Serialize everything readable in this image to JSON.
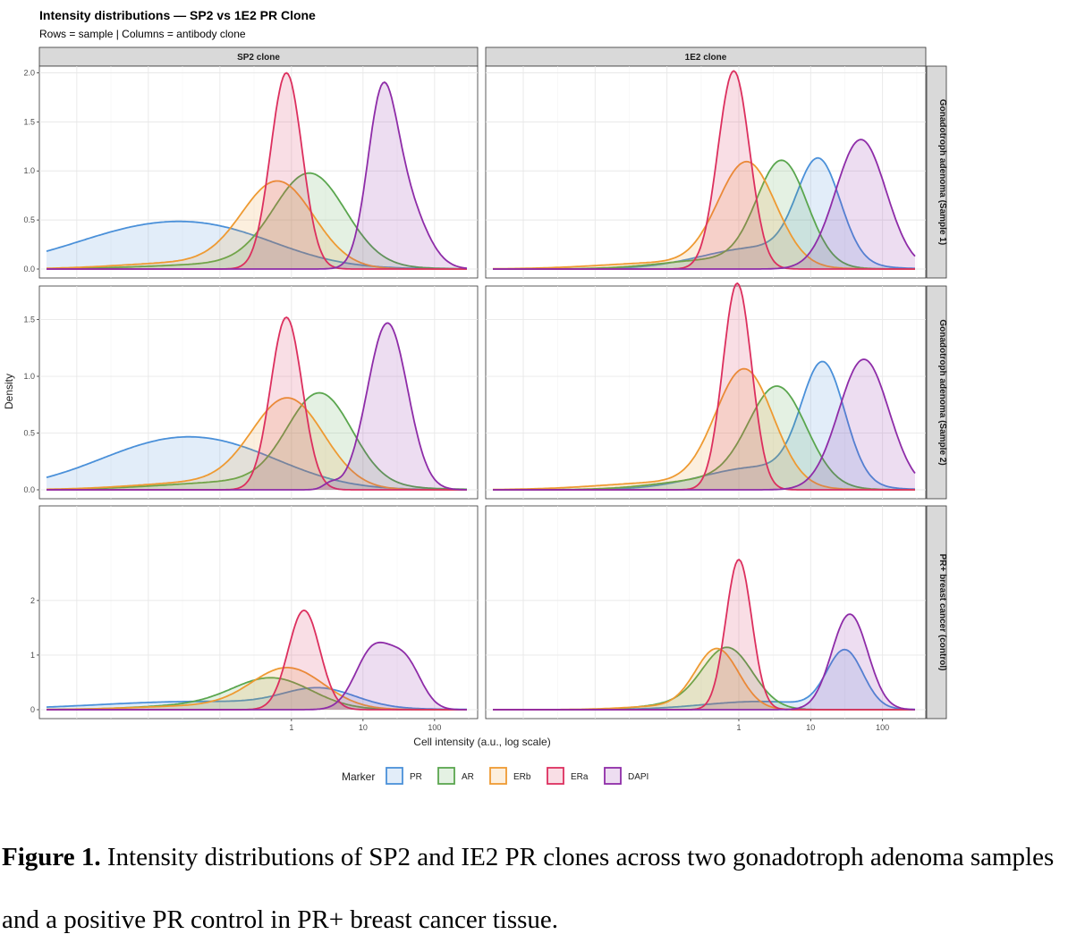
{
  "figure": {
    "title": "Intensity distributions — SP2 vs 1E2 PR Clone",
    "subtitle": "Rows = sample | Columns = antibody clone",
    "caption_bold": "Figure 1.",
    "caption_text": " Intensity distributions of SP2 and IE2 PR clones across two gonadotroph adenoma samples and a positive PR control in PR+ breast cancer tissue."
  },
  "chart_data": {
    "type": "area",
    "title": "Intensity distributions — SP2 vs 1E2 PR Clone",
    "subtitle": "Rows = sample | Columns = antibody clone",
    "xlabel": "Cell intensity (a.u., log scale)",
    "ylabel": "Density",
    "x_scale": "log10",
    "x_ticks": [
      1,
      10,
      100
    ],
    "x_range": [
      0.0003,
      400
    ],
    "columns": [
      "SP2 clone",
      "1E2 clone"
    ],
    "rows": [
      "Gonadotroph adenoma (Sample 1)",
      "Gonadotroph adenoma (Sample 2)",
      "PR+ breast cancer (control)"
    ],
    "row_ylim": [
      [
        0,
        2.05
      ],
      [
        0,
        1.78
      ],
      [
        0,
        3.7
      ]
    ],
    "row_yticks": [
      [
        "0.0",
        "0.5",
        "1.0",
        "1.5",
        "2.0"
      ],
      [
        "0.0",
        "0.5",
        "1.0",
        "1.5"
      ],
      [
        "0",
        "1",
        "2"
      ]
    ],
    "legend": {
      "title": "Marker",
      "placement": "bottom",
      "items": [
        "PR",
        "AR",
        "ERb",
        "ERa",
        "DAPI"
      ]
    },
    "colors": {
      "PR": "#4a90d9",
      "AR": "#5aa64e",
      "ERb": "#ee9a32",
      "ERa": "#dc2f5e",
      "DAPI": "#8e2ca8"
    },
    "grid": true,
    "panels": [
      {
        "row": 0,
        "col": 0,
        "series": [
          {
            "name": "PR",
            "components": [
              [
                0.015,
                1.2,
                0.44
              ],
              [
                0.2,
                0.8,
                0.1
              ]
            ]
          },
          {
            "name": "AR",
            "components": [
              [
                1.8,
                0.5,
                0.93
              ],
              [
                0.3,
                1.2,
                0.06
              ]
            ]
          },
          {
            "name": "ERb",
            "components": [
              [
                0.65,
                0.5,
                0.86
              ],
              [
                0.05,
                1.0,
                0.07
              ]
            ]
          },
          {
            "name": "ERa",
            "components": [
              [
                0.85,
                0.22,
                2.0
              ]
            ]
          },
          {
            "name": "DAPI",
            "components": [
              [
                18,
                0.2,
                1.4
              ],
              [
                35,
                0.3,
                0.75
              ]
            ]
          }
        ]
      },
      {
        "row": 0,
        "col": 1,
        "series": [
          {
            "name": "PR",
            "components": [
              [
                13,
                0.3,
                1.0
              ],
              [
                2,
                0.8,
                0.22
              ]
            ]
          },
          {
            "name": "AR",
            "components": [
              [
                4.0,
                0.35,
                1.05
              ],
              [
                0.6,
                0.8,
                0.1
              ]
            ]
          },
          {
            "name": "ERb",
            "components": [
              [
                1.3,
                0.4,
                1.05
              ],
              [
                0.15,
                1.0,
                0.07
              ]
            ]
          },
          {
            "name": "ERa",
            "components": [
              [
                0.85,
                0.22,
                2.02
              ]
            ]
          },
          {
            "name": "DAPI",
            "components": [
              [
                50,
                0.35,
                1.32
              ]
            ]
          }
        ]
      },
      {
        "row": 1,
        "col": 0,
        "series": [
          {
            "name": "PR",
            "components": [
              [
                0.025,
                1.1,
                0.43
              ],
              [
                0.3,
                0.8,
                0.08
              ]
            ]
          },
          {
            "name": "AR",
            "components": [
              [
                2.5,
                0.45,
                0.79
              ],
              [
                0.4,
                1.2,
                0.08
              ]
            ]
          },
          {
            "name": "ERb",
            "components": [
              [
                0.9,
                0.5,
                0.77
              ],
              [
                0.08,
                1.0,
                0.07
              ]
            ]
          },
          {
            "name": "ERa",
            "components": [
              [
                0.85,
                0.22,
                1.52
              ]
            ]
          },
          {
            "name": "DAPI",
            "components": [
              [
                22,
                0.28,
                1.47
              ],
              [
                3.5,
                0.1,
                0.05
              ]
            ]
          }
        ]
      },
      {
        "row": 1,
        "col": 1,
        "series": [
          {
            "name": "PR",
            "components": [
              [
                15,
                0.3,
                1.02
              ],
              [
                2,
                0.8,
                0.2
              ]
            ]
          },
          {
            "name": "AR",
            "components": [
              [
                3.5,
                0.4,
                0.85
              ],
              [
                0.6,
                0.8,
                0.1
              ]
            ]
          },
          {
            "name": "ERb",
            "components": [
              [
                1.2,
                0.4,
                1.02
              ],
              [
                0.15,
                1.0,
                0.07
              ]
            ]
          },
          {
            "name": "ERa",
            "components": [
              [
                0.95,
                0.2,
                1.82
              ]
            ]
          },
          {
            "name": "DAPI",
            "components": [
              [
                55,
                0.35,
                1.15
              ]
            ]
          }
        ]
      },
      {
        "row": 2,
        "col": 0,
        "series": [
          {
            "name": "PR",
            "components": [
              [
                0.05,
                1.4,
                0.15
              ],
              [
                2.5,
                0.5,
                0.33
              ]
            ]
          },
          {
            "name": "AR",
            "components": [
              [
                0.55,
                0.55,
                0.55
              ],
              [
                0.05,
                0.8,
                0.08
              ]
            ]
          },
          {
            "name": "ERb",
            "components": [
              [
                0.9,
                0.5,
                0.72
              ],
              [
                0.1,
                1.0,
                0.08
              ]
            ]
          },
          {
            "name": "ERa",
            "components": [
              [
                1.5,
                0.22,
                1.82
              ]
            ]
          },
          {
            "name": "DAPI",
            "components": [
              [
                14,
                0.25,
                1.1
              ],
              [
                40,
                0.22,
                0.8
              ]
            ]
          }
        ]
      },
      {
        "row": 2,
        "col": 1,
        "series": [
          {
            "name": "PR",
            "components": [
              [
                30,
                0.25,
                1.05
              ],
              [
                2,
                0.8,
                0.15
              ]
            ]
          },
          {
            "name": "AR",
            "components": [
              [
                0.7,
                0.35,
                1.1
              ],
              [
                0.15,
                0.5,
                0.1
              ]
            ]
          },
          {
            "name": "ERb",
            "components": [
              [
                0.5,
                0.3,
                1.08
              ],
              [
                0.12,
                0.6,
                0.07
              ]
            ]
          },
          {
            "name": "ERa",
            "components": [
              [
                1.0,
                0.18,
                2.75
              ]
            ]
          },
          {
            "name": "DAPI",
            "components": [
              [
                35,
                0.25,
                1.75
              ]
            ]
          }
        ]
      }
    ]
  }
}
